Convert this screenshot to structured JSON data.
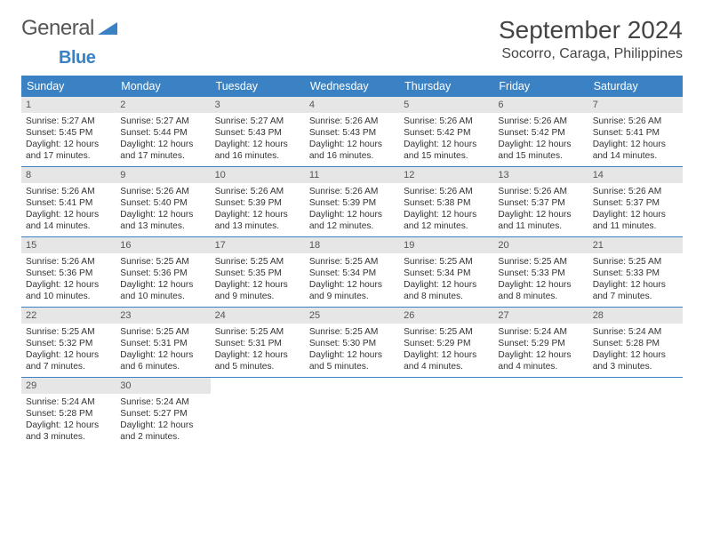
{
  "logo": {
    "text1": "General",
    "text2": "Blue"
  },
  "title": "September 2024",
  "location": "Socorro, Caraga, Philippines",
  "colors": {
    "header_bg": "#3a82c4",
    "header_text": "#ffffff",
    "daynum_bg": "#e6e6e6",
    "border": "#3a82c4",
    "text": "#333333",
    "bg": "#ffffff"
  },
  "day_labels": [
    "Sunday",
    "Monday",
    "Tuesday",
    "Wednesday",
    "Thursday",
    "Friday",
    "Saturday"
  ],
  "weeks": [
    [
      {
        "n": "1",
        "sr": "Sunrise: 5:27 AM",
        "ss": "Sunset: 5:45 PM",
        "dl1": "Daylight: 12 hours",
        "dl2": "and 17 minutes."
      },
      {
        "n": "2",
        "sr": "Sunrise: 5:27 AM",
        "ss": "Sunset: 5:44 PM",
        "dl1": "Daylight: 12 hours",
        "dl2": "and 17 minutes."
      },
      {
        "n": "3",
        "sr": "Sunrise: 5:27 AM",
        "ss": "Sunset: 5:43 PM",
        "dl1": "Daylight: 12 hours",
        "dl2": "and 16 minutes."
      },
      {
        "n": "4",
        "sr": "Sunrise: 5:26 AM",
        "ss": "Sunset: 5:43 PM",
        "dl1": "Daylight: 12 hours",
        "dl2": "and 16 minutes."
      },
      {
        "n": "5",
        "sr": "Sunrise: 5:26 AM",
        "ss": "Sunset: 5:42 PM",
        "dl1": "Daylight: 12 hours",
        "dl2": "and 15 minutes."
      },
      {
        "n": "6",
        "sr": "Sunrise: 5:26 AM",
        "ss": "Sunset: 5:42 PM",
        "dl1": "Daylight: 12 hours",
        "dl2": "and 15 minutes."
      },
      {
        "n": "7",
        "sr": "Sunrise: 5:26 AM",
        "ss": "Sunset: 5:41 PM",
        "dl1": "Daylight: 12 hours",
        "dl2": "and 14 minutes."
      }
    ],
    [
      {
        "n": "8",
        "sr": "Sunrise: 5:26 AM",
        "ss": "Sunset: 5:41 PM",
        "dl1": "Daylight: 12 hours",
        "dl2": "and 14 minutes."
      },
      {
        "n": "9",
        "sr": "Sunrise: 5:26 AM",
        "ss": "Sunset: 5:40 PM",
        "dl1": "Daylight: 12 hours",
        "dl2": "and 13 minutes."
      },
      {
        "n": "10",
        "sr": "Sunrise: 5:26 AM",
        "ss": "Sunset: 5:39 PM",
        "dl1": "Daylight: 12 hours",
        "dl2": "and 13 minutes."
      },
      {
        "n": "11",
        "sr": "Sunrise: 5:26 AM",
        "ss": "Sunset: 5:39 PM",
        "dl1": "Daylight: 12 hours",
        "dl2": "and 12 minutes."
      },
      {
        "n": "12",
        "sr": "Sunrise: 5:26 AM",
        "ss": "Sunset: 5:38 PM",
        "dl1": "Daylight: 12 hours",
        "dl2": "and 12 minutes."
      },
      {
        "n": "13",
        "sr": "Sunrise: 5:26 AM",
        "ss": "Sunset: 5:37 PM",
        "dl1": "Daylight: 12 hours",
        "dl2": "and 11 minutes."
      },
      {
        "n": "14",
        "sr": "Sunrise: 5:26 AM",
        "ss": "Sunset: 5:37 PM",
        "dl1": "Daylight: 12 hours",
        "dl2": "and 11 minutes."
      }
    ],
    [
      {
        "n": "15",
        "sr": "Sunrise: 5:26 AM",
        "ss": "Sunset: 5:36 PM",
        "dl1": "Daylight: 12 hours",
        "dl2": "and 10 minutes."
      },
      {
        "n": "16",
        "sr": "Sunrise: 5:25 AM",
        "ss": "Sunset: 5:36 PM",
        "dl1": "Daylight: 12 hours",
        "dl2": "and 10 minutes."
      },
      {
        "n": "17",
        "sr": "Sunrise: 5:25 AM",
        "ss": "Sunset: 5:35 PM",
        "dl1": "Daylight: 12 hours",
        "dl2": "and 9 minutes."
      },
      {
        "n": "18",
        "sr": "Sunrise: 5:25 AM",
        "ss": "Sunset: 5:34 PM",
        "dl1": "Daylight: 12 hours",
        "dl2": "and 9 minutes."
      },
      {
        "n": "19",
        "sr": "Sunrise: 5:25 AM",
        "ss": "Sunset: 5:34 PM",
        "dl1": "Daylight: 12 hours",
        "dl2": "and 8 minutes."
      },
      {
        "n": "20",
        "sr": "Sunrise: 5:25 AM",
        "ss": "Sunset: 5:33 PM",
        "dl1": "Daylight: 12 hours",
        "dl2": "and 8 minutes."
      },
      {
        "n": "21",
        "sr": "Sunrise: 5:25 AM",
        "ss": "Sunset: 5:33 PM",
        "dl1": "Daylight: 12 hours",
        "dl2": "and 7 minutes."
      }
    ],
    [
      {
        "n": "22",
        "sr": "Sunrise: 5:25 AM",
        "ss": "Sunset: 5:32 PM",
        "dl1": "Daylight: 12 hours",
        "dl2": "and 7 minutes."
      },
      {
        "n": "23",
        "sr": "Sunrise: 5:25 AM",
        "ss": "Sunset: 5:31 PM",
        "dl1": "Daylight: 12 hours",
        "dl2": "and 6 minutes."
      },
      {
        "n": "24",
        "sr": "Sunrise: 5:25 AM",
        "ss": "Sunset: 5:31 PM",
        "dl1": "Daylight: 12 hours",
        "dl2": "and 5 minutes."
      },
      {
        "n": "25",
        "sr": "Sunrise: 5:25 AM",
        "ss": "Sunset: 5:30 PM",
        "dl1": "Daylight: 12 hours",
        "dl2": "and 5 minutes."
      },
      {
        "n": "26",
        "sr": "Sunrise: 5:25 AM",
        "ss": "Sunset: 5:29 PM",
        "dl1": "Daylight: 12 hours",
        "dl2": "and 4 minutes."
      },
      {
        "n": "27",
        "sr": "Sunrise: 5:24 AM",
        "ss": "Sunset: 5:29 PM",
        "dl1": "Daylight: 12 hours",
        "dl2": "and 4 minutes."
      },
      {
        "n": "28",
        "sr": "Sunrise: 5:24 AM",
        "ss": "Sunset: 5:28 PM",
        "dl1": "Daylight: 12 hours",
        "dl2": "and 3 minutes."
      }
    ],
    [
      {
        "n": "29",
        "sr": "Sunrise: 5:24 AM",
        "ss": "Sunset: 5:28 PM",
        "dl1": "Daylight: 12 hours",
        "dl2": "and 3 minutes."
      },
      {
        "n": "30",
        "sr": "Sunrise: 5:24 AM",
        "ss": "Sunset: 5:27 PM",
        "dl1": "Daylight: 12 hours",
        "dl2": "and 2 minutes."
      },
      null,
      null,
      null,
      null,
      null
    ]
  ]
}
